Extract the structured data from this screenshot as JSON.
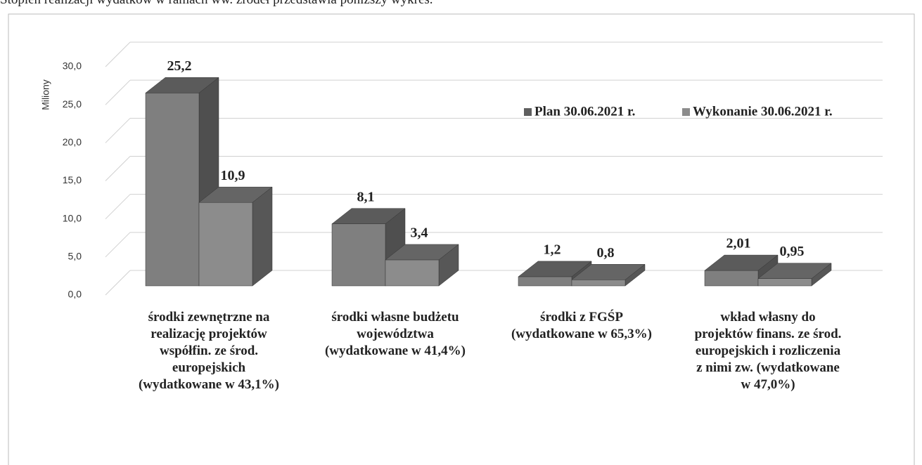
{
  "intro_text": "Stopień realizacji wydatków w ramach ww. źródeł przedstawia poniższy wykres.",
  "chart_data": {
    "type": "bar3d",
    "y_label": "Miliony",
    "categories": [
      "środki zewnętrzne na\nrealizację projektów\nwspółfin. ze środ.\neuropejskich\n(wydatkowane w 43,1%)",
      "środki własne budżetu\nwojewództwa\n(wydatkowane w 41,4%)",
      "środki z FGŚP\n(wydatkowane w 65,3%)",
      "wkład własny do\nprojektów finans. ze środ.\neuropejskich i rozliczenia\nz nimi zw. (wydatkowane\nw 47,0%)"
    ],
    "series": [
      {
        "name": "Plan 30.06.2021 r.",
        "color": "#7f7f7f",
        "values": [
          25.2,
          8.1,
          1.2,
          2.01
        ],
        "value_labels": [
          "25,2",
          "8,1",
          "1,2",
          "2,01"
        ]
      },
      {
        "name": "Wykonanie 30.06.2021 r.",
        "color": "#8c8c8c",
        "values": [
          10.9,
          3.4,
          0.8,
          0.95
        ],
        "value_labels": [
          "10,9",
          "3,4",
          "0,8",
          "0,95"
        ]
      }
    ],
    "ylim": [
      0,
      30
    ],
    "yticks": [
      {
        "value": 0,
        "label": "0,0"
      },
      {
        "value": 5,
        "label": "5,0"
      },
      {
        "value": 10,
        "label": "10,0"
      },
      {
        "value": 15,
        "label": "15,0"
      },
      {
        "value": 20,
        "label": "20,0"
      },
      {
        "value": 25,
        "label": "25,0"
      },
      {
        "value": 30,
        "label": "30,0"
      }
    ],
    "grid": true,
    "legend": "top-right"
  }
}
